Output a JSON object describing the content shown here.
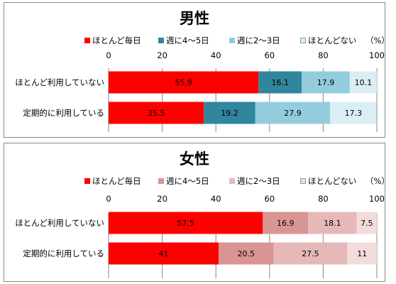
{
  "chart_data": [
    {
      "type": "bar",
      "orientation": "horizontal",
      "stacked": true,
      "title": "男性",
      "unit_label": "（%）",
      "xlim": [
        0,
        100
      ],
      "x_ticks": [
        "0",
        "20",
        "40",
        "60",
        "80",
        "100"
      ],
      "categories": [
        "ほとんど利用していない",
        "定期的に利用している"
      ],
      "series": [
        {
          "name": "ほとんど毎日",
          "color": "#ff0000",
          "values": [
            55.9,
            35.5
          ]
        },
        {
          "name": "週に4～5日",
          "color": "#31859c",
          "values": [
            16.1,
            19.2
          ]
        },
        {
          "name": "週に2～3日",
          "color": "#93cddd",
          "values": [
            17.9,
            27.9
          ]
        },
        {
          "name": "ほとんどない",
          "color": "#daeef3",
          "values": [
            10.1,
            17.3
          ]
        }
      ],
      "legend_position": "top",
      "grid": true
    },
    {
      "type": "bar",
      "orientation": "horizontal",
      "stacked": true,
      "title": "女性",
      "unit_label": "（%）",
      "xlim": [
        0,
        100
      ],
      "x_ticks": [
        "0",
        "20",
        "40",
        "60",
        "80",
        "100"
      ],
      "categories": [
        "ほとんど利用していない",
        "定期的に利用している"
      ],
      "series": [
        {
          "name": "ほとんど毎日",
          "color": "#ff0000",
          "values": [
            57.5,
            41
          ]
        },
        {
          "name": "週に4～5日",
          "color": "#d99594",
          "values": [
            16.9,
            20.5
          ]
        },
        {
          "name": "週に2～3日",
          "color": "#e6b9b8",
          "values": [
            18.1,
            27.5
          ]
        },
        {
          "name": "ほとんどない",
          "color": "#f2dcdb",
          "values": [
            7.5,
            11
          ]
        }
      ],
      "legend_position": "top",
      "grid": true
    }
  ]
}
